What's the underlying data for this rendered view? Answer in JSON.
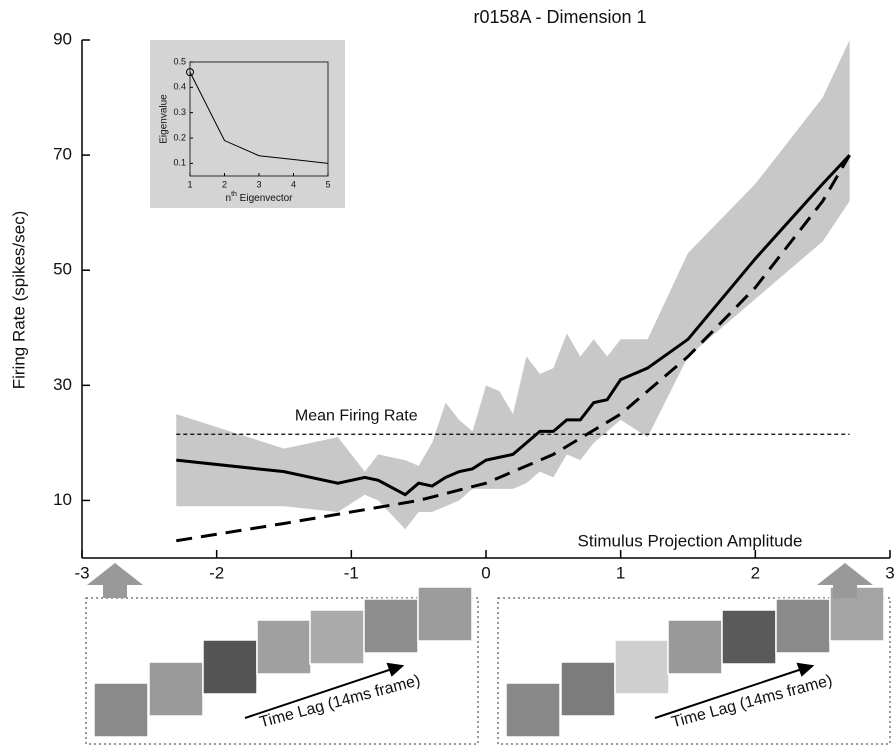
{
  "chart_data": [
    {
      "type": "line",
      "title": "r0158A - Dimension 1",
      "y_label": "Firing Rate (spikes/sec)",
      "xlim": [
        -3,
        3
      ],
      "xticks": [
        -3,
        -2,
        -1,
        0,
        1,
        2,
        3
      ],
      "ylim": [
        0,
        90
      ],
      "yticks": [
        10,
        30,
        50,
        70,
        90
      ],
      "band": {
        "color": "#c8c8c8",
        "x": [
          -2.3,
          -1.5,
          -1.1,
          -0.9,
          -0.8,
          -0.6,
          -0.5,
          -0.4,
          -0.3,
          -0.2,
          -0.1,
          0,
          0.1,
          0.2,
          0.3,
          0.4,
          0.5,
          0.6,
          0.7,
          0.8,
          0.9,
          1.0,
          1.2,
          1.5,
          2.0,
          2.5,
          2.7
        ],
        "upper": [
          25,
          19,
          21,
          15,
          18,
          17,
          16,
          20,
          27,
          24,
          22,
          30,
          29,
          25,
          35,
          32,
          33,
          39,
          35,
          38,
          35,
          38,
          38,
          53,
          65,
          80,
          90
        ],
        "lower": [
          9,
          9,
          8,
          11,
          10,
          5,
          8,
          8,
          9,
          10,
          12,
          12,
          12,
          12,
          13,
          15,
          14,
          18,
          17,
          20,
          22,
          24,
          21,
          35,
          45,
          55,
          62
        ]
      },
      "series": [
        {
          "color": "#000000",
          "style": "solid",
          "x": [
            -2.3,
            -1.5,
            -1.1,
            -0.9,
            -0.8,
            -0.6,
            -0.5,
            -0.4,
            -0.3,
            -0.2,
            -0.1,
            0,
            0.1,
            0.2,
            0.3,
            0.4,
            0.5,
            0.6,
            0.7,
            0.8,
            0.9,
            1.0,
            1.2,
            1.5,
            2.0,
            2.5,
            2.7
          ],
          "values": [
            17,
            15,
            13,
            14,
            13.5,
            11,
            13,
            12.5,
            14,
            15,
            15.5,
            17,
            17.5,
            18,
            20,
            22,
            22,
            24,
            24,
            27,
            27.5,
            31,
            33,
            38,
            52,
            65,
            70
          ]
        },
        {
          "color": "#000000",
          "style": "dashed",
          "x": [
            -2.3,
            -1.5,
            -1.0,
            -0.5,
            0,
            0.5,
            1.0,
            1.5,
            2.0,
            2.5,
            2.7
          ],
          "values": [
            3,
            6,
            8,
            10,
            13,
            18,
            25,
            35,
            47,
            62,
            70
          ]
        }
      ],
      "hline": {
        "value": 21.5,
        "x": [
          -2.3,
          2.7
        ],
        "label": "Mean Firing Rate"
      },
      "annotation": "Stimulus Projection Amplitude",
      "panel_labels": [
        "Time Lag (14ms frame)",
        "Time Lag (14ms frame)"
      ]
    },
    {
      "type": "line",
      "x_label": [
        "n",
        "th",
        " Eigenvector"
      ],
      "y_label": "Eigenvalue",
      "xlim": [
        1,
        5
      ],
      "xticks": [
        1,
        2,
        3,
        4,
        5
      ],
      "ylim": [
        0.05,
        0.5
      ],
      "yticks": [
        0.1,
        0.2,
        0.3,
        0.4,
        0.5
      ],
      "x": [
        1,
        2,
        3,
        4,
        5
      ],
      "values": [
        0.46,
        0.19,
        0.13,
        0.115,
        0.1
      ]
    }
  ]
}
